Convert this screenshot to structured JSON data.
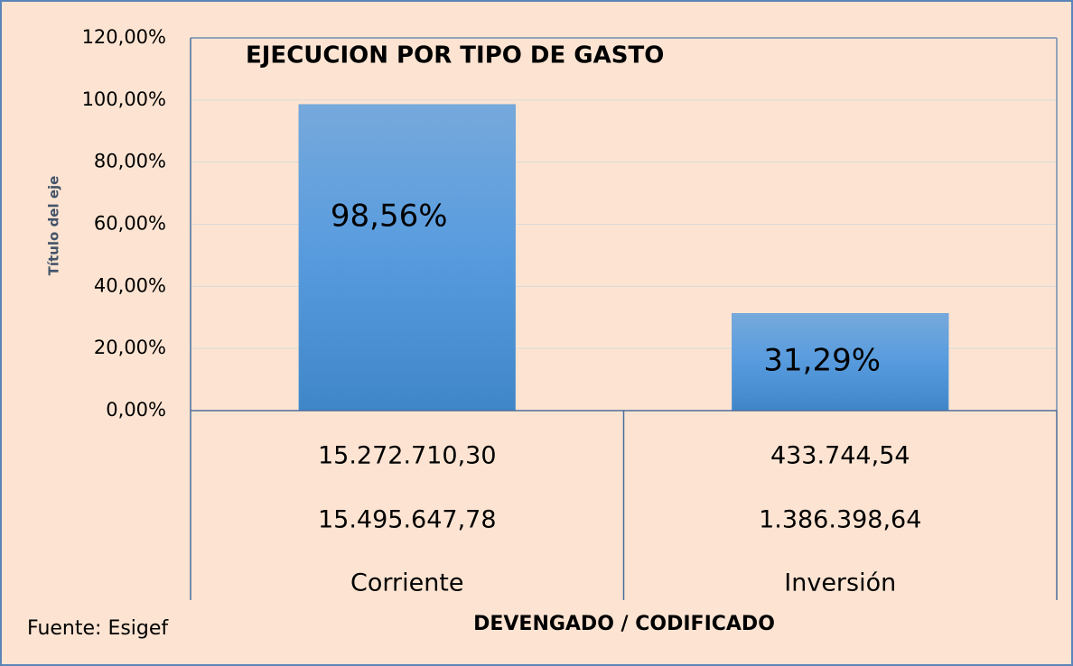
{
  "chart_data": {
    "type": "bar",
    "title": "EJECUCION POR TIPO DE GASTO",
    "y_label": "Título del eje",
    "x_label": "DEVENGADO / CODIFICADO",
    "source": "Fuente: Esigef",
    "categories": [
      "Corriente",
      "Inversión"
    ],
    "values": [
      98.56,
      31.29
    ],
    "value_labels": [
      "98,56%",
      "31,29%"
    ],
    "color": "#5b9bd5",
    "ylim": [
      0,
      120
    ],
    "yticks": [
      {
        "value": 0,
        "label": "0,00%"
      },
      {
        "value": 20,
        "label": "20,00%"
      },
      {
        "value": 40,
        "label": "40,00%"
      },
      {
        "value": 60,
        "label": "60,00%"
      },
      {
        "value": 80,
        "label": "80,00%"
      },
      {
        "value": 100,
        "label": "100,00%"
      },
      {
        "value": 120,
        "label": "120,00%"
      }
    ],
    "grid": true,
    "table_rows": [
      [
        "15.272.710,30",
        "433.744,54"
      ],
      [
        "15.495.647,78",
        "1.386.398,64"
      ]
    ]
  }
}
